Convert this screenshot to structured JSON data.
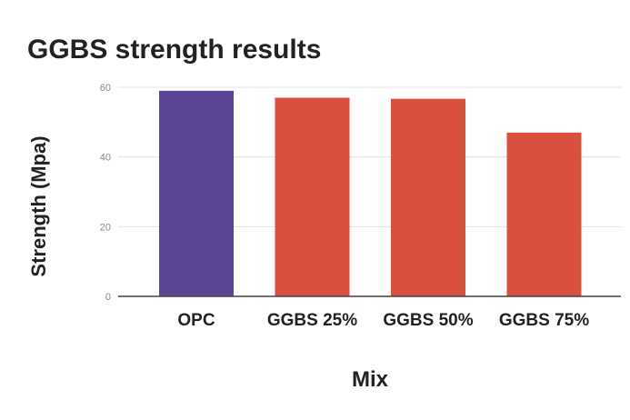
{
  "chart_data": {
    "type": "bar",
    "title": "GGBS strength results",
    "xlabel": "Mix",
    "ylabel": "Strength (Mpa)",
    "categories": [
      "OPC",
      "GGBS 25%",
      "GGBS 50%",
      "GGBS 75%"
    ],
    "values": [
      59,
      57,
      56.7,
      47
    ],
    "ylim": [
      0,
      60
    ],
    "yticks": [
      0,
      20,
      40,
      60
    ],
    "grid": true,
    "legend": "none",
    "colors": [
      "#5c4595",
      "#d9503f",
      "#d9503f",
      "#d9503f"
    ],
    "gridline_color": "#e0e0e0",
    "axis_color": "#444444"
  }
}
